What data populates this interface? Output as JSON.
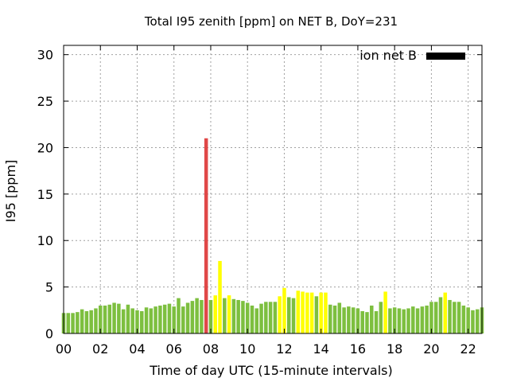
{
  "chart_data": {
    "type": "bar",
    "title": "Total I95 zenith [ppm] on NET B, DoY=231",
    "xlabel": "Time of day UTC (15-minute intervals)",
    "ylabel": "I95 [ppm]",
    "legend": {
      "label": "ion net B",
      "color": "#000000",
      "placement": "top-right"
    },
    "xlim": [
      0,
      22.75
    ],
    "ylim": [
      0,
      31
    ],
    "grid": true,
    "x_ticks": [
      "00",
      "02",
      "04",
      "06",
      "08",
      "10",
      "12",
      "14",
      "16",
      "18",
      "20",
      "22"
    ],
    "x_tick_values": [
      0,
      2,
      4,
      6,
      8,
      10,
      12,
      14,
      16,
      18,
      20,
      22
    ],
    "y_ticks": [
      "0",
      "5",
      "10",
      "15",
      "20",
      "25",
      "30"
    ],
    "y_tick_values": [
      0,
      5,
      10,
      15,
      20,
      25,
      30
    ],
    "interval_hours": 0.25,
    "values": [
      2.2,
      2.2,
      2.2,
      2.3,
      2.6,
      2.4,
      2.5,
      2.7,
      3.0,
      3.0,
      3.1,
      3.3,
      3.2,
      2.6,
      3.1,
      2.7,
      2.5,
      2.4,
      2.8,
      2.7,
      2.9,
      3.0,
      3.1,
      3.2,
      2.9,
      3.8,
      2.9,
      3.3,
      3.5,
      3.8,
      3.6,
      21.0,
      3.6,
      4.1,
      7.8,
      3.8,
      4.1,
      3.7,
      3.6,
      3.5,
      3.3,
      3.0,
      2.7,
      3.2,
      3.4,
      3.4,
      3.4,
      4.0,
      4.9,
      3.9,
      3.8,
      4.6,
      4.5,
      4.4,
      4.4,
      4.0,
      4.4,
      4.4,
      3.1,
      3.0,
      3.3,
      2.8,
      2.9,
      2.8,
      2.7,
      2.4,
      2.3,
      3.0,
      2.4,
      3.4,
      4.5,
      2.7,
      2.8,
      2.7,
      2.6,
      2.7,
      2.9,
      2.7,
      2.9,
      3.0,
      3.4,
      3.4,
      3.9,
      4.4,
      3.6,
      3.4,
      3.4,
      3.0,
      2.8,
      2.5,
      2.6,
      2.8
    ],
    "bar_colors": {
      "normal": "#7dbf3f",
      "elevated": "#ffff00",
      "high": "#e04848"
    },
    "bar_levels": [
      "normal",
      "normal",
      "normal",
      "normal",
      "normal",
      "normal",
      "normal",
      "normal",
      "normal",
      "normal",
      "normal",
      "normal",
      "normal",
      "normal",
      "normal",
      "normal",
      "normal",
      "normal",
      "normal",
      "normal",
      "normal",
      "normal",
      "normal",
      "normal",
      "normal",
      "normal",
      "normal",
      "normal",
      "normal",
      "normal",
      "normal",
      "high",
      "normal",
      "elevated",
      "elevated",
      "normal",
      "elevated",
      "normal",
      "normal",
      "normal",
      "normal",
      "normal",
      "normal",
      "normal",
      "normal",
      "normal",
      "normal",
      "elevated",
      "elevated",
      "normal",
      "normal",
      "elevated",
      "elevated",
      "elevated",
      "elevated",
      "normal",
      "elevated",
      "elevated",
      "normal",
      "normal",
      "normal",
      "normal",
      "normal",
      "normal",
      "normal",
      "normal",
      "normal",
      "normal",
      "normal",
      "normal",
      "elevated",
      "normal",
      "normal",
      "normal",
      "normal",
      "normal",
      "normal",
      "normal",
      "normal",
      "normal",
      "normal",
      "normal",
      "normal",
      "elevated",
      "normal",
      "normal",
      "normal",
      "normal",
      "normal",
      "normal",
      "normal",
      "normal"
    ]
  }
}
